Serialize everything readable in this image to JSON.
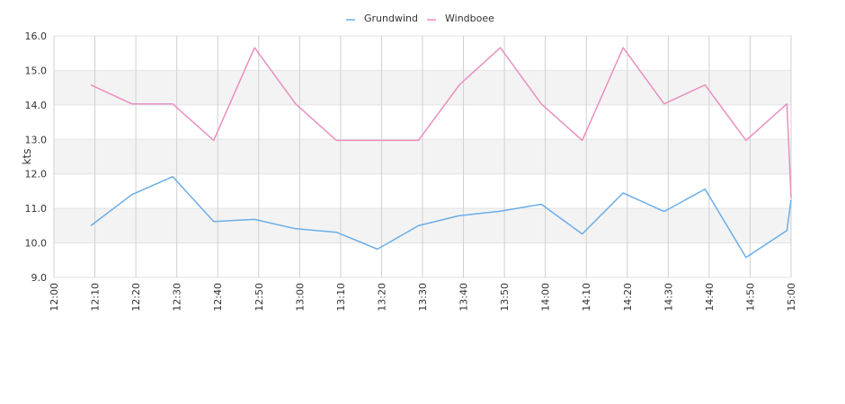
{
  "chart_data": {
    "type": "line",
    "title": "",
    "xlabel": "",
    "ylabel": "kts",
    "ylim": [
      9.0,
      16.0
    ],
    "y_ticks": [
      "9.0",
      "10.0",
      "11.0",
      "12.0",
      "13.0",
      "14.0",
      "15.0",
      "16.0"
    ],
    "x_ticks": [
      "12:00",
      "12:10",
      "12:20",
      "12:30",
      "12:40",
      "12:50",
      "13:00",
      "13:10",
      "13:20",
      "13:30",
      "13:40",
      "13:50",
      "14:00",
      "14:10",
      "14:20",
      "14:30",
      "14:40",
      "14:50",
      "15:00"
    ],
    "xlim": [
      "12:00",
      "15:00"
    ],
    "grid": true,
    "legend_position": "top-center",
    "series": [
      {
        "name": "Grundwind",
        "color": "#6aaee8",
        "x": [
          "12:09",
          "12:19",
          "12:29",
          "12:39",
          "12:49",
          "12:59",
          "13:09",
          "13:19",
          "13:29",
          "13:39",
          "13:49",
          "13:59",
          "14:09",
          "14:19",
          "14:29",
          "14:39",
          "14:49",
          "14:59",
          "15:00"
        ],
        "values": [
          10.5,
          11.4,
          11.92,
          10.62,
          10.68,
          10.41,
          10.31,
          9.82,
          10.5,
          10.79,
          10.92,
          11.12,
          10.26,
          11.45,
          10.91,
          11.56,
          9.58,
          10.36,
          11.25
        ]
      },
      {
        "name": "Windboee",
        "color": "#ea8fbf",
        "x": [
          "12:09",
          "12:19",
          "12:29",
          "12:39",
          "12:49",
          "12:59",
          "13:09",
          "13:19",
          "13:29",
          "13:39",
          "13:49",
          "13:59",
          "14:09",
          "14:19",
          "14:29",
          "14:39",
          "14:49",
          "14:59",
          "15:00"
        ],
        "values": [
          14.58,
          14.03,
          14.03,
          12.97,
          15.66,
          14.03,
          12.97,
          12.97,
          12.97,
          14.58,
          15.66,
          14.03,
          12.97,
          15.66,
          14.03,
          14.58,
          12.97,
          14.03,
          11.3
        ]
      }
    ]
  }
}
